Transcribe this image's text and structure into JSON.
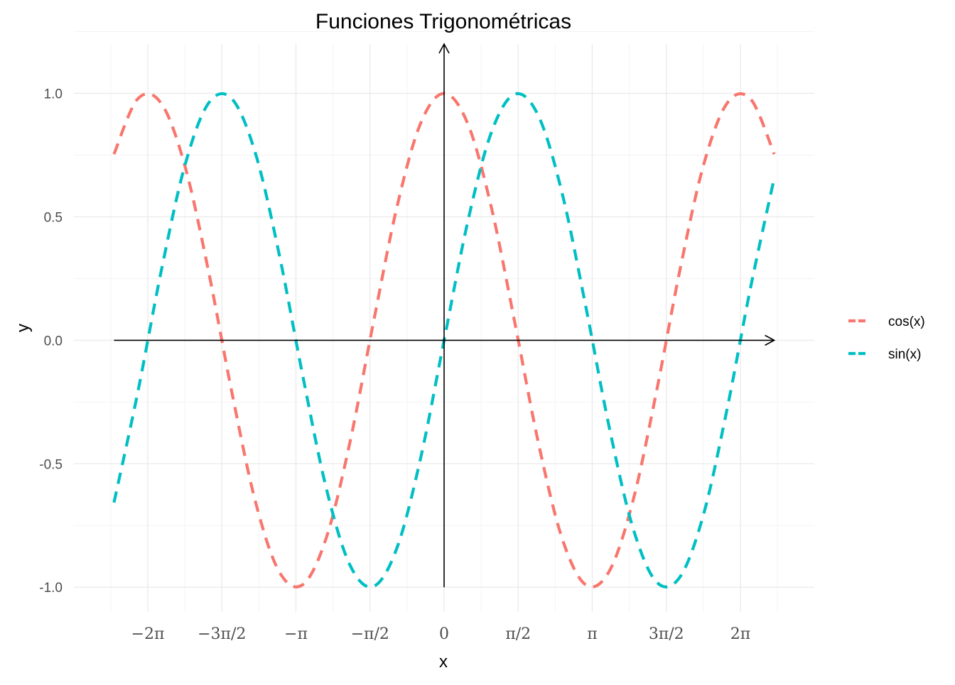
{
  "chart_data": {
    "type": "line",
    "title": "Funciones Trigonométricas",
    "xlabel": "x",
    "ylabel": "y",
    "xlim": [
      -7.85,
      7.85
    ],
    "ylim": [
      -1.1,
      1.2
    ],
    "grid": true,
    "legend_position": "right",
    "x_ticks": [
      {
        "value": -6.283185,
        "label": "−2π"
      },
      {
        "value": -4.712389,
        "label": "−3π/2"
      },
      {
        "value": -3.141593,
        "label": "−π"
      },
      {
        "value": -1.570796,
        "label": "−π/2"
      },
      {
        "value": 0,
        "label": "0"
      },
      {
        "value": 1.570796,
        "label": "π/2"
      },
      {
        "value": 3.141593,
        "label": "π"
      },
      {
        "value": 4.712389,
        "label": "3π/2"
      },
      {
        "value": 6.283185,
        "label": "2π"
      }
    ],
    "y_ticks": [
      {
        "value": 1.0,
        "label": "1.0"
      },
      {
        "value": 0.5,
        "label": "0.5"
      },
      {
        "value": 0.0,
        "label": "0.0"
      },
      {
        "value": -0.5,
        "label": "-0.5"
      },
      {
        "value": -1.0,
        "label": "-1.0"
      }
    ],
    "arrows": {
      "x_axis": {
        "from": -7.0,
        "to": 7.0
      },
      "y_axis": {
        "from": -1.0,
        "to": 1.2
      }
    },
    "series": [
      {
        "name": "cos(x)",
        "color": "#F8766D",
        "linestyle": "dashed",
        "x": [
          -7.0,
          -6.5,
          -6.0,
          -5.5,
          -5.0,
          -4.5,
          -4.0,
          -3.5,
          -3.0,
          -2.5,
          -2.0,
          -1.5,
          -1.0,
          -0.5,
          0.0,
          0.5,
          1.0,
          1.5,
          2.0,
          2.5,
          3.0,
          3.5,
          4.0,
          4.5,
          5.0,
          5.5,
          6.0,
          6.5,
          7.0
        ],
        "y": [
          0.754,
          0.977,
          0.96,
          0.709,
          0.284,
          -0.211,
          -0.654,
          -0.936,
          -0.99,
          -0.801,
          -0.416,
          0.071,
          0.54,
          0.878,
          1.0,
          0.878,
          0.54,
          0.071,
          -0.416,
          -0.801,
          -0.99,
          -0.936,
          -0.654,
          -0.211,
          0.284,
          0.709,
          0.96,
          0.977,
          0.754
        ]
      },
      {
        "name": "sin(x)",
        "color": "#00BFC4",
        "linestyle": "dashed",
        "x": [
          -7.0,
          -6.5,
          -6.0,
          -5.5,
          -5.0,
          -4.5,
          -4.0,
          -3.5,
          -3.0,
          -2.5,
          -2.0,
          -1.5,
          -1.0,
          -0.5,
          0.0,
          0.5,
          1.0,
          1.5,
          2.0,
          2.5,
          3.0,
          3.5,
          4.0,
          4.5,
          5.0,
          5.5,
          6.0,
          6.5,
          7.0
        ],
        "y": [
          -0.657,
          -0.215,
          0.279,
          0.706,
          0.959,
          0.978,
          0.757,
          0.351,
          -0.141,
          -0.598,
          -0.909,
          -0.997,
          -0.841,
          -0.479,
          0.0,
          0.479,
          0.841,
          0.997,
          0.909,
          0.598,
          0.141,
          -0.351,
          -0.757,
          -0.978,
          -0.959,
          -0.706,
          -0.279,
          0.215,
          0.657
        ]
      }
    ]
  }
}
